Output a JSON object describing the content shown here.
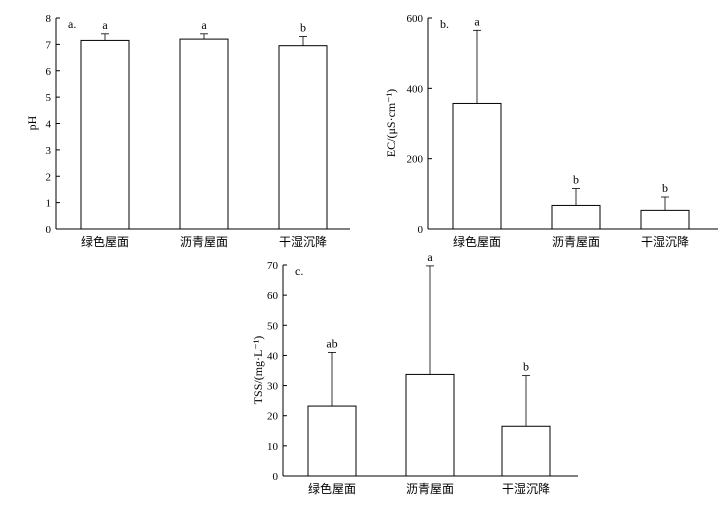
{
  "chart_data": [
    {
      "type": "bar",
      "panel_label": "a.",
      "ylabel": "pH",
      "ylim": [
        0,
        8
      ],
      "yticks": [
        0,
        1,
        2,
        3,
        4,
        5,
        6,
        7,
        8
      ],
      "categories": [
        "绿色屋面",
        "沥青屋面",
        "干湿沉降"
      ],
      "values": [
        7.15,
        7.2,
        6.95
      ],
      "errors": [
        0.25,
        0.2,
        0.35
      ],
      "significance": [
        "a",
        "a",
        "b"
      ]
    },
    {
      "type": "bar",
      "panel_label": "b.",
      "ylabel": "EC/(μS·cm⁻¹)",
      "ylim": [
        0,
        600
      ],
      "yticks": [
        0,
        200,
        400,
        600
      ],
      "categories": [
        "绿色屋面",
        "沥青屋面",
        "干湿沉降"
      ],
      "values": [
        357,
        67,
        53
      ],
      "errors": [
        208,
        48,
        38
      ],
      "significance": [
        "a",
        "b",
        "b"
      ]
    },
    {
      "type": "bar",
      "panel_label": "c.",
      "ylabel": "TSS/(mg·L⁻¹)",
      "ylim": [
        0,
        70
      ],
      "yticks": [
        0,
        10,
        20,
        30,
        40,
        50,
        60,
        70
      ],
      "categories": [
        "绿色屋面",
        "沥青屋面",
        "干湿沉降"
      ],
      "values": [
        23.2,
        33.7,
        16.5
      ],
      "errors": [
        17.8,
        36,
        16.8
      ],
      "significance": [
        "ab",
        "a",
        "b"
      ]
    }
  ]
}
